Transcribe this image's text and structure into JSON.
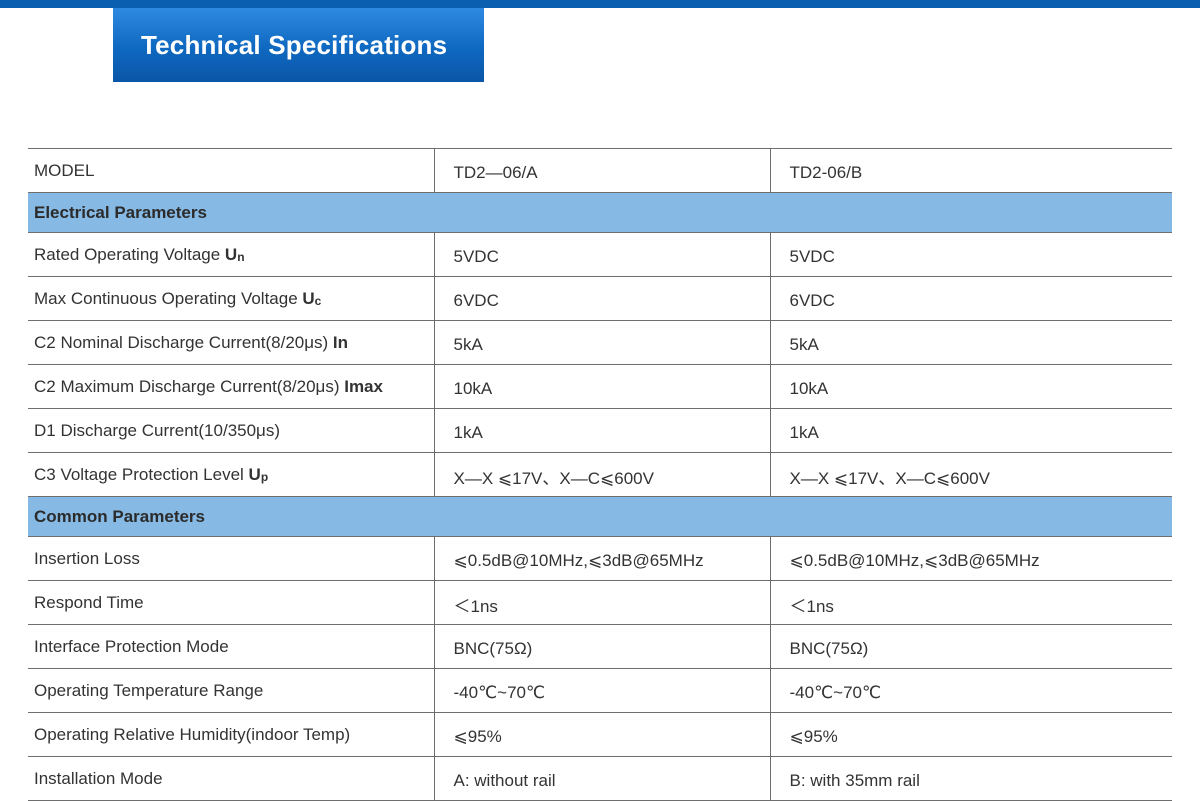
{
  "header": {
    "title": "Technical Specifications",
    "accent_color": "#0a5fb0",
    "section_color": "#86b9e3"
  },
  "table": {
    "model_label": "MODEL",
    "models": [
      "TD2—06/A",
      "TD2-06/B"
    ],
    "sections": [
      {
        "title": "Electrical Parameters",
        "rows": [
          {
            "label": "Rated Operating Voltage ",
            "sym": "U",
            "sub": "n",
            "values": [
              "5VDC",
              "5VDC"
            ]
          },
          {
            "label": "Max Continuous Operating Voltage ",
            "sym": "U",
            "sub": "c",
            "values": [
              "6VDC",
              "6VDC"
            ]
          },
          {
            "label": "C2 Nominal Discharge Current(8/20μs) ",
            "sym": "In",
            "sub": "",
            "values": [
              "5kA",
              "5kA"
            ]
          },
          {
            "label": "C2 Maximum Discharge Current(8/20μs) ",
            "sym": "Imax",
            "sub": "",
            "values": [
              "10kA",
              "10kA"
            ]
          },
          {
            "label": "D1 Discharge Current(10/350μs)",
            "sym": "",
            "sub": "",
            "values": [
              "1kA",
              "1kA"
            ]
          },
          {
            "label": "C3 Voltage Protection Level ",
            "sym": "U",
            "sub": "p",
            "values": [
              "X—X ⩽17V、X—C⩽600V",
              "X—X ⩽17V、X—C⩽600V"
            ]
          }
        ]
      },
      {
        "title": "Common Parameters",
        "rows": [
          {
            "label": "Insertion Loss",
            "sym": "",
            "sub": "",
            "values": [
              "⩽0.5dB@10MHz,⩽3dB@65MHz",
              "⩽0.5dB@10MHz,⩽3dB@65MHz"
            ]
          },
          {
            "label": "Respond Time",
            "sym": "",
            "sub": "",
            "values": [
              "＜1ns",
              "＜1ns"
            ]
          },
          {
            "label": "Interface Protection Mode",
            "sym": "",
            "sub": "",
            "values": [
              "BNC(75Ω)",
              "BNC(75Ω)"
            ]
          },
          {
            "label": "Operating Temperature Range",
            "sym": "",
            "sub": "",
            "values": [
              "-40℃~70℃",
              "-40℃~70℃"
            ]
          },
          {
            "label": "Operating Relative Humidity(indoor Temp)",
            "sym": "",
            "sub": "",
            "values": [
              "⩽95%",
              "⩽95%"
            ]
          },
          {
            "label": "Installation Mode",
            "sym": "",
            "sub": "",
            "values": [
              "A: without rail",
              "B: with 35mm rail"
            ]
          }
        ]
      }
    ]
  }
}
